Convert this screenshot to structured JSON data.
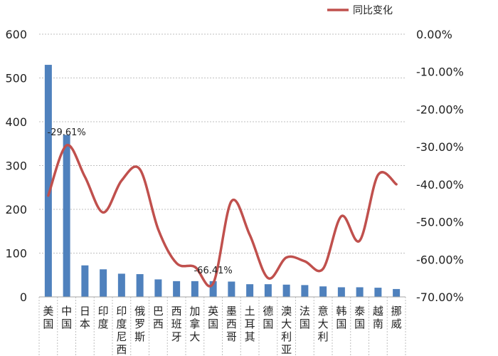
{
  "chart_data": {
    "type": "bar+line",
    "categories": [
      "美国",
      "中国",
      "日本",
      "印度",
      "印度尼西亚",
      "俄罗斯",
      "巴西",
      "西班牙",
      "加拿大",
      "英国",
      "墨西哥",
      "土耳其",
      "德国",
      "澳大利亚",
      "法国",
      "意大利",
      "韩国",
      "泰国",
      "越南",
      "挪威"
    ],
    "series": [
      {
        "type": "bar",
        "axis": "left",
        "color": "#4f81bd",
        "values": [
          530,
          370,
          72,
          63,
          53,
          52,
          40,
          36,
          36,
          36,
          35,
          29,
          29,
          28,
          27,
          24,
          22,
          22,
          21,
          18
        ]
      },
      {
        "name": "同比变化",
        "type": "line",
        "axis": "right",
        "color": "#c0504d",
        "values": [
          -43.0,
          -29.61,
          -38.0,
          -47.5,
          -39.0,
          -36.0,
          -52.0,
          -61.0,
          -62.0,
          -66.41,
          -44.5,
          -53.5,
          -65.0,
          -59.5,
          -60.5,
          -62.5,
          -48.5,
          -55.0,
          -37.5,
          -40.0
        ]
      }
    ],
    "y_left": {
      "min": 0,
      "max": 600,
      "ticks": [
        "0",
        "100",
        "200",
        "300",
        "400",
        "500",
        "600"
      ]
    },
    "y_right": {
      "min": -70,
      "max": 0,
      "ticks": [
        "0.00%",
        "-10.00%",
        "-20.00%",
        "-30.00%",
        "-40.00%",
        "-50.00%",
        "-60.00%",
        "-70.00%"
      ]
    },
    "data_labels": [
      {
        "index": 1,
        "text": "-29.61%"
      },
      {
        "index": 9,
        "text": "-66.41%"
      }
    ],
    "legend": {
      "position": "top-right",
      "label": "同比变化"
    },
    "grid": true
  }
}
